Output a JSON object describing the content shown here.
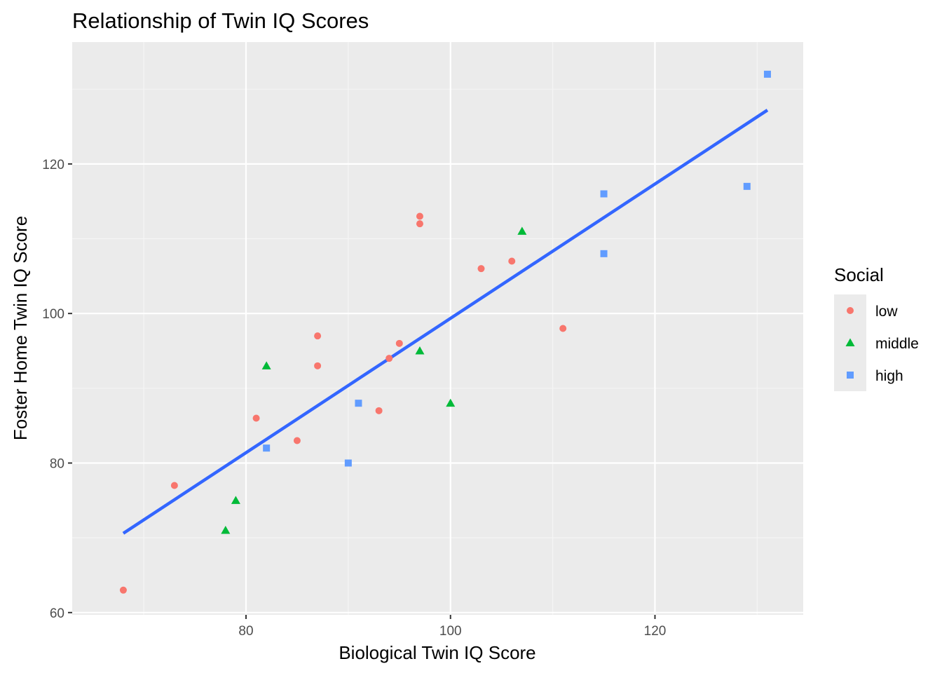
{
  "chart_data": {
    "type": "scatter",
    "title": "Relationship of Twin IQ Scores",
    "xlabel": "Biological Twin IQ Score",
    "ylabel": "Foster Home Twin IQ Score",
    "xlim": [
      63,
      134.5
    ],
    "ylim": [
      59.7,
      136.3
    ],
    "x_ticks": [
      80,
      100,
      120
    ],
    "y_ticks": [
      60,
      80,
      100,
      120
    ],
    "x_minor_ticks": [
      70,
      90,
      110,
      130
    ],
    "y_minor_ticks": [
      70,
      90,
      110,
      130
    ],
    "grid": true,
    "legend": {
      "title": "Social",
      "placement": "right",
      "entries": [
        {
          "name": "low",
          "shape": "circle",
          "color": "#F8766D"
        },
        {
          "name": "middle",
          "shape": "triangle",
          "color": "#00BA38"
        },
        {
          "name": "high",
          "shape": "square",
          "color": "#619CFF"
        }
      ]
    },
    "series": [
      {
        "name": "low",
        "shape": "circle",
        "color": "#F8766D",
        "points": [
          [
            68,
            63
          ],
          [
            73,
            77
          ],
          [
            81,
            86
          ],
          [
            85,
            83
          ],
          [
            87,
            93
          ],
          [
            87,
            97
          ],
          [
            93,
            87
          ],
          [
            94,
            94
          ],
          [
            95,
            96
          ],
          [
            97,
            112
          ],
          [
            97,
            113
          ],
          [
            103,
            106
          ],
          [
            106,
            107
          ],
          [
            111,
            98
          ]
        ]
      },
      {
        "name": "middle",
        "shape": "triangle",
        "color": "#00BA38",
        "points": [
          [
            78,
            71
          ],
          [
            79,
            75
          ],
          [
            82,
            93
          ],
          [
            97,
            95
          ],
          [
            100,
            88
          ],
          [
            107,
            111
          ]
        ]
      },
      {
        "name": "high",
        "shape": "square",
        "color": "#619CFF",
        "points": [
          [
            82,
            82
          ],
          [
            90,
            80
          ],
          [
            91,
            88
          ],
          [
            115,
            108
          ],
          [
            115,
            116
          ],
          [
            129,
            117
          ],
          [
            131,
            132
          ]
        ]
      }
    ],
    "fit_line": {
      "color": "#3366FF",
      "points": [
        [
          68,
          70.6
        ],
        [
          131,
          127.2
        ]
      ]
    },
    "colors": {
      "panel_background": "#EBEBEB",
      "grid_major": "#FFFFFF",
      "grid_minor": "#F5F5F5",
      "tick_text": "#4D4D4D"
    }
  }
}
